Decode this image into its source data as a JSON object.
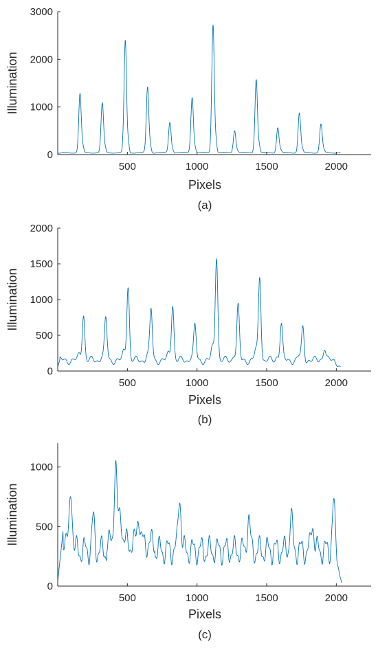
{
  "series_color": "#0072BD",
  "axis_color": "#262626",
  "chart_data": [
    {
      "type": "line",
      "caption": "(a)",
      "xlabel": "Pixels",
      "ylabel": "Illumination",
      "xlim": [
        0,
        2250
      ],
      "ylim": [
        0,
        3000
      ],
      "xticks": [
        500,
        1000,
        1500,
        2000
      ],
      "yticks": [
        0,
        1000,
        2000,
        3000
      ],
      "x_range": [
        0,
        2030
      ],
      "baseline": 40,
      "peaks": [
        {
          "x": 160,
          "y": 1280,
          "w": 9
        },
        {
          "x": 320,
          "y": 1080,
          "w": 9
        },
        {
          "x": 485,
          "y": 2400,
          "w": 9
        },
        {
          "x": 645,
          "y": 1420,
          "w": 9
        },
        {
          "x": 805,
          "y": 680,
          "w": 9
        },
        {
          "x": 965,
          "y": 1210,
          "w": 9
        },
        {
          "x": 1115,
          "y": 2740,
          "w": 9
        },
        {
          "x": 1270,
          "y": 510,
          "w": 9
        },
        {
          "x": 1425,
          "y": 1590,
          "w": 9
        },
        {
          "x": 1580,
          "y": 570,
          "w": 9
        },
        {
          "x": 1735,
          "y": 880,
          "w": 9
        },
        {
          "x": 1890,
          "y": 640,
          "w": 9
        }
      ]
    },
    {
      "type": "line",
      "caption": "(b)",
      "xlabel": "Pixels",
      "ylabel": "Illumination",
      "xlim": [
        0,
        2250
      ],
      "ylim": [
        0,
        2000
      ],
      "xticks": [
        500,
        1000,
        1500,
        2000
      ],
      "yticks": [
        0,
        500,
        1000,
        1500,
        2000
      ],
      "x_range": [
        0,
        2030
      ],
      "baseline": 150,
      "peaks": [
        {
          "x": 185,
          "y": 800,
          "w": 9
        },
        {
          "x": 345,
          "y": 730,
          "w": 9
        },
        {
          "x": 505,
          "y": 1200,
          "w": 9
        },
        {
          "x": 670,
          "y": 860,
          "w": 9
        },
        {
          "x": 825,
          "y": 940,
          "w": 9
        },
        {
          "x": 985,
          "y": 630,
          "w": 9
        },
        {
          "x": 1140,
          "y": 1620,
          "w": 9
        },
        {
          "x": 1295,
          "y": 900,
          "w": 9
        },
        {
          "x": 1450,
          "y": 1340,
          "w": 9
        },
        {
          "x": 1605,
          "y": 660,
          "w": 9
        },
        {
          "x": 1760,
          "y": 610,
          "w": 9
        },
        {
          "x": 1915,
          "y": 330,
          "w": 9
        }
      ]
    },
    {
      "type": "line",
      "caption": "(c)",
      "xlabel": "Pixels",
      "ylabel": "Illumination",
      "xlim": [
        0,
        2250
      ],
      "ylim": [
        0,
        1200
      ],
      "xticks": [
        500,
        1000,
        1500,
        2000
      ],
      "yticks": [
        0,
        500,
        1000
      ],
      "x_range": [
        0,
        2040
      ],
      "baseline": 300,
      "peaks": [
        {
          "x": 50,
          "y": 490,
          "w": 14
        },
        {
          "x": 95,
          "y": 860,
          "w": 10
        },
        {
          "x": 255,
          "y": 600,
          "w": 10
        },
        {
          "x": 415,
          "y": 1030,
          "w": 10
        },
        {
          "x": 450,
          "y": 600,
          "w": 12
        },
        {
          "x": 580,
          "y": 600,
          "w": 10
        },
        {
          "x": 875,
          "y": 830,
          "w": 10
        },
        {
          "x": 1370,
          "y": 630,
          "w": 10
        },
        {
          "x": 1675,
          "y": 630,
          "w": 10
        },
        {
          "x": 1830,
          "y": 600,
          "w": 10
        },
        {
          "x": 1980,
          "y": 720,
          "w": 10
        }
      ]
    }
  ]
}
